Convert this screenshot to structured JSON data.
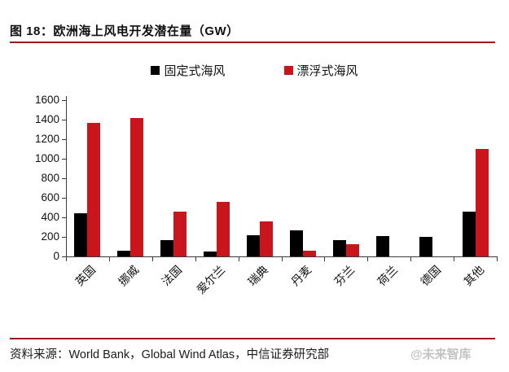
{
  "figure": {
    "title": "图 18：欧洲海上风电开发潜在量（GW）",
    "source_line": "资料来源：World Bank，Global Wind Atlas，中信证券研究部",
    "watermark": "@未来智库"
  },
  "colors": {
    "fixed_series": "#000000",
    "floating_series": "#C9151B",
    "rule_line": "#A21518",
    "axis": "#3a3a3a",
    "watermark": "#c3c3c3"
  },
  "chart_data": {
    "type": "bar",
    "title": "欧洲海上风电开发潜在量（GW）",
    "categories": [
      "英国",
      "挪威",
      "法国",
      "爱尔兰",
      "瑞典",
      "丹麦",
      "芬兰",
      "荷兰",
      "德国",
      "其他"
    ],
    "series": [
      {
        "name": "固定式海风",
        "color": "#000000",
        "values": [
          440,
          55,
          165,
          50,
          220,
          270,
          165,
          210,
          200,
          460
        ]
      },
      {
        "name": "漂浮式海风",
        "color": "#C9151B",
        "values": [
          1370,
          1420,
          455,
          560,
          360,
          60,
          125,
          0,
          0,
          1100
        ]
      }
    ],
    "xlabel": "",
    "ylabel": "",
    "ylim": [
      0,
      1600
    ],
    "ytick_step": 200,
    "yticks": [
      0,
      200,
      400,
      600,
      800,
      1000,
      1200,
      1400,
      1600
    ],
    "grid": false,
    "legend_position": "top-center"
  }
}
